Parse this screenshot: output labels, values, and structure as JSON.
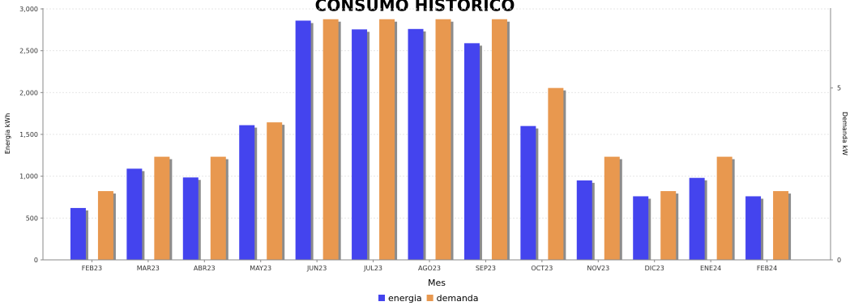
{
  "chart_data": {
    "type": "bar",
    "title": "CONSUMO HISTORICO",
    "xlabel": "Mes",
    "ylabel": "Energia kWh",
    "y2label": "Demanda kW",
    "categories": [
      "FEB23",
      "MAR23",
      "ABR23",
      "MAY23",
      "JUN23",
      "JUL23",
      "AGO23",
      "SEP23",
      "OCT23",
      "NOV23",
      "DIC23",
      "ENE24",
      "FEB24"
    ],
    "series": [
      {
        "name": "energia",
        "axis": "left",
        "color": "#4444ee",
        "values": [
          620,
          1090,
          985,
          1610,
          2860,
          2755,
          2760,
          2590,
          1600,
          950,
          760,
          980,
          760
        ]
      },
      {
        "name": "demanda",
        "axis": "right",
        "color": "#e8984f",
        "values": [
          2.0,
          3.0,
          3.0,
          4.0,
          7.0,
          7.0,
          7.0,
          7.0,
          5.0,
          3.0,
          2.0,
          3.0,
          2.0
        ]
      }
    ],
    "ylim": [
      0,
      3000
    ],
    "yticks": [
      "0",
      "500",
      "1,000",
      "1,500",
      "2,000",
      "2,500",
      "3,000"
    ],
    "y2lim": [
      0,
      7.3
    ],
    "y2ticks": [
      "0",
      "5"
    ],
    "grid": true,
    "legend_position": "bottom"
  }
}
